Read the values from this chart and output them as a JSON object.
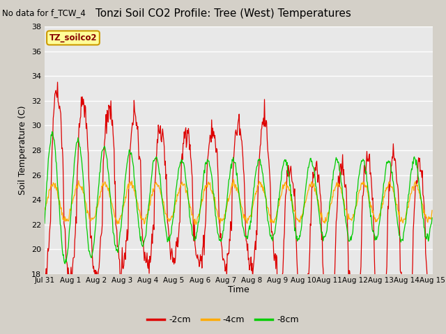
{
  "title": "Tonzi Soil CO2 Profile: Tree (West) Temperatures",
  "no_data_text": "No data for f_TCW_4",
  "ylabel": "Soil Temperature (C)",
  "xlabel": "Time",
  "ylim": [
    18,
    38
  ],
  "fig_bg_color": "#d4d0c8",
  "plot_bg_color": "#e8e8e8",
  "grid_color": "#ffffff",
  "legend_label": "TZ_soilco2",
  "legend_box_color": "#ffff99",
  "legend_box_edge": "#cc9900",
  "series_2cm_label": "-2cm",
  "series_2cm_color": "#dd0000",
  "series_4cm_label": "-4cm",
  "series_4cm_color": "#ffaa00",
  "series_8cm_label": "-8cm",
  "series_8cm_color": "#00cc00",
  "x_tick_labels": [
    "Jul 31",
    "Aug 1",
    "Aug 2",
    "Aug 3",
    "Aug 4",
    "Aug 5",
    "Aug 6",
    "Aug 7",
    "Aug 8",
    "Aug 9",
    "Aug 10",
    "Aug 11",
    "Aug 12",
    "Aug 13",
    "Aug 14",
    "Aug 15"
  ],
  "y_ticks": [
    18,
    20,
    22,
    24,
    26,
    28,
    30,
    32,
    34,
    36,
    38
  ],
  "n_days": 15,
  "pts_per_day": 48
}
